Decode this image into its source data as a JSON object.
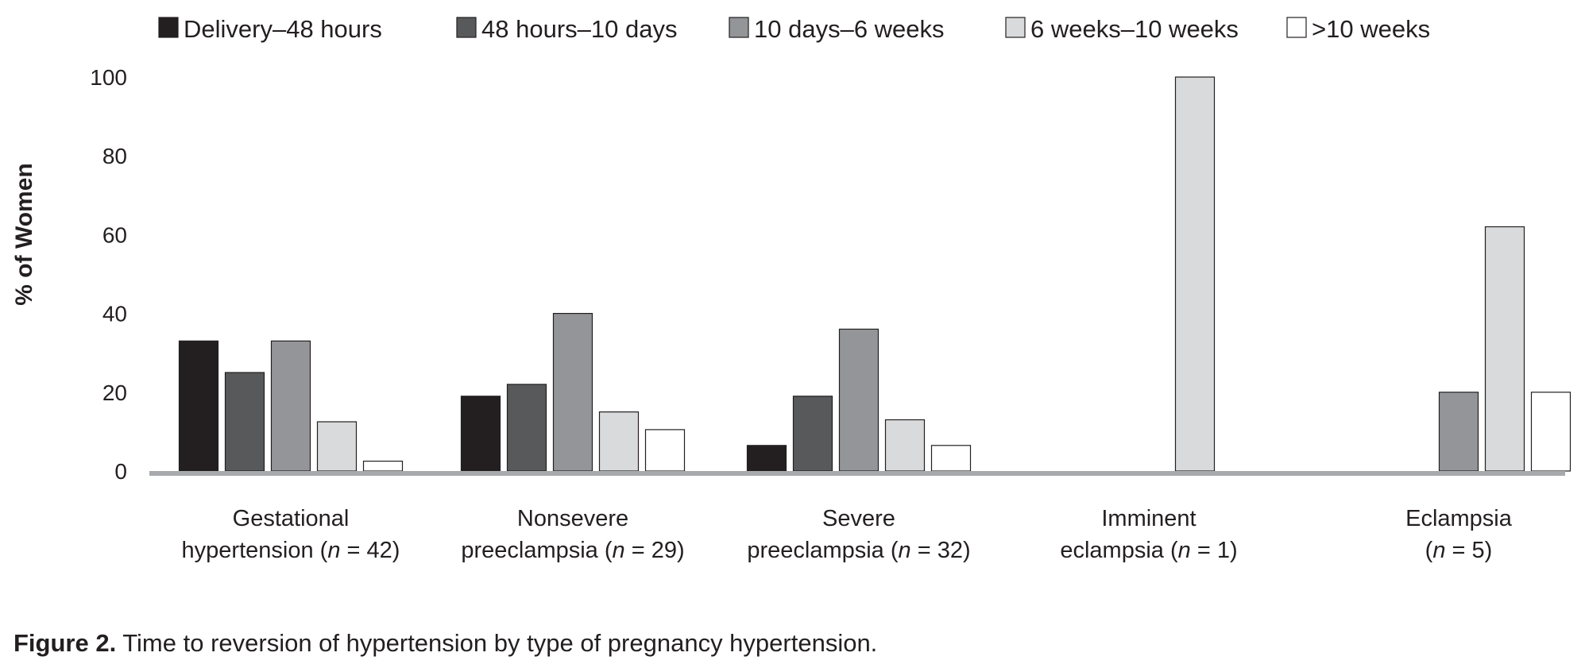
{
  "chart_data": {
    "type": "bar",
    "ylabel": "% of Women",
    "xlabel": "",
    "ylim": [
      0,
      100
    ],
    "yticks": [
      0,
      20,
      40,
      60,
      80,
      100
    ],
    "grid": false,
    "legend_position": "top",
    "categories": [
      {
        "line1": "Gestational",
        "line2_pre": "hypertension (",
        "n_label": "n",
        "line2_post": " = 42)"
      },
      {
        "line1": "Nonsevere",
        "line2_pre": "preeclampsia (",
        "n_label": "n",
        "line2_post": " = 29)"
      },
      {
        "line1": "Severe",
        "line2_pre": "preeclampsia (",
        "n_label": "n",
        "line2_post": " = 32)"
      },
      {
        "line1": "Imminent",
        "line2_pre": "eclampsia (",
        "n_label": "n",
        "line2_post": " = 1)"
      },
      {
        "line1": "Eclampsia",
        "line2_pre": "(",
        "n_label": "n",
        "line2_post": " = 5)"
      }
    ],
    "series": [
      {
        "name": "Delivery–48 hours",
        "color": "#231f20",
        "values": [
          33,
          19,
          6.5,
          0,
          0
        ]
      },
      {
        "name": "48 hours–10 days",
        "color": "#58595b",
        "values": [
          25,
          22,
          19,
          0,
          0
        ]
      },
      {
        "name": "10 days–6 weeks",
        "color": "#939598",
        "values": [
          33,
          40,
          36,
          0,
          20
        ]
      },
      {
        "name": "6 weeks–10 weeks",
        "color": "#d9dadb",
        "values": [
          12.5,
          15,
          13,
          100,
          62
        ]
      },
      {
        "name": ">10 weeks",
        "color": "#ffffff",
        "values": [
          2.5,
          10.5,
          6.5,
          0,
          20
        ]
      }
    ]
  },
  "caption": {
    "label": "Figure 2.",
    "text": " Time to reversion of hypertension by type of pregnancy hypertension."
  }
}
